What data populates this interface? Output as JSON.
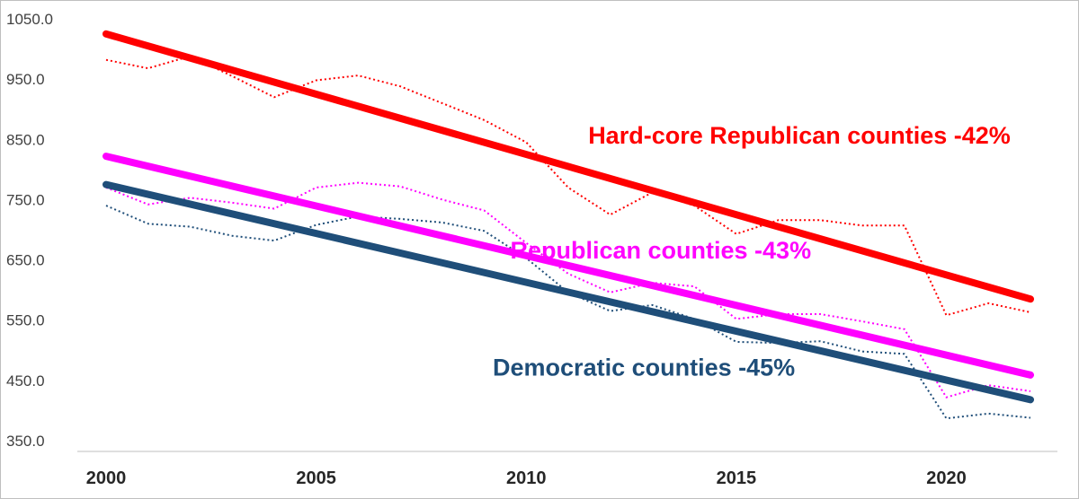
{
  "chart_data": {
    "type": "line",
    "title": "",
    "xlabel": "",
    "ylabel": "",
    "xlim": [
      2000,
      2022
    ],
    "ylim": [
      350,
      1050
    ],
    "yticks": [
      "1050.0",
      "950.0",
      "850.0",
      "750.0",
      "650.0",
      "550.0",
      "450.0",
      "350.0"
    ],
    "xticks": [
      "2000",
      "2005",
      "2010",
      "2015",
      "2020"
    ],
    "grid": false,
    "legend": "none",
    "x": [
      2000,
      2001,
      2002,
      2003,
      2004,
      2005,
      2006,
      2007,
      2008,
      2009,
      2010,
      2011,
      2012,
      2013,
      2014,
      2015,
      2016,
      2017,
      2018,
      2019,
      2020,
      2021,
      2022
    ],
    "series": [
      {
        "key": "hardcore",
        "color": "#ff0000",
        "values": [
          982,
          968,
          988,
          955,
          920,
          948,
          956,
          938,
          910,
          882,
          845,
          770,
          725,
          762,
          740,
          693,
          716,
          716,
          707,
          707,
          558,
          578,
          563
        ],
        "trend": [
          1025,
          585
        ]
      },
      {
        "key": "republican",
        "color": "#ff00ff",
        "values": [
          770,
          742,
          753,
          745,
          735,
          770,
          778,
          772,
          750,
          732,
          678,
          627,
          596,
          612,
          606,
          552,
          560,
          560,
          548,
          535,
          422,
          442,
          432
        ],
        "trend": [
          822,
          459
        ]
      },
      {
        "key": "democratic",
        "color": "#1f4e79",
        "values": [
          740,
          710,
          705,
          690,
          682,
          708,
          722,
          718,
          712,
          698,
          653,
          596,
          565,
          575,
          552,
          514,
          512,
          515,
          498,
          494,
          387,
          395,
          388
        ],
        "trend": [
          775,
          418
        ]
      }
    ],
    "annotations": [
      {
        "text": "Hard-core Republican counties -42%",
        "color": "#ff0000",
        "x": 2016.5,
        "y": 843
      },
      {
        "text": "Republican counties  -43%",
        "color": "#ff00ff",
        "x": 2013.2,
        "y": 652
      },
      {
        "text": "Democratic counties  -45%",
        "color": "#1f4e79",
        "x": 2012.8,
        "y": 458
      }
    ]
  }
}
